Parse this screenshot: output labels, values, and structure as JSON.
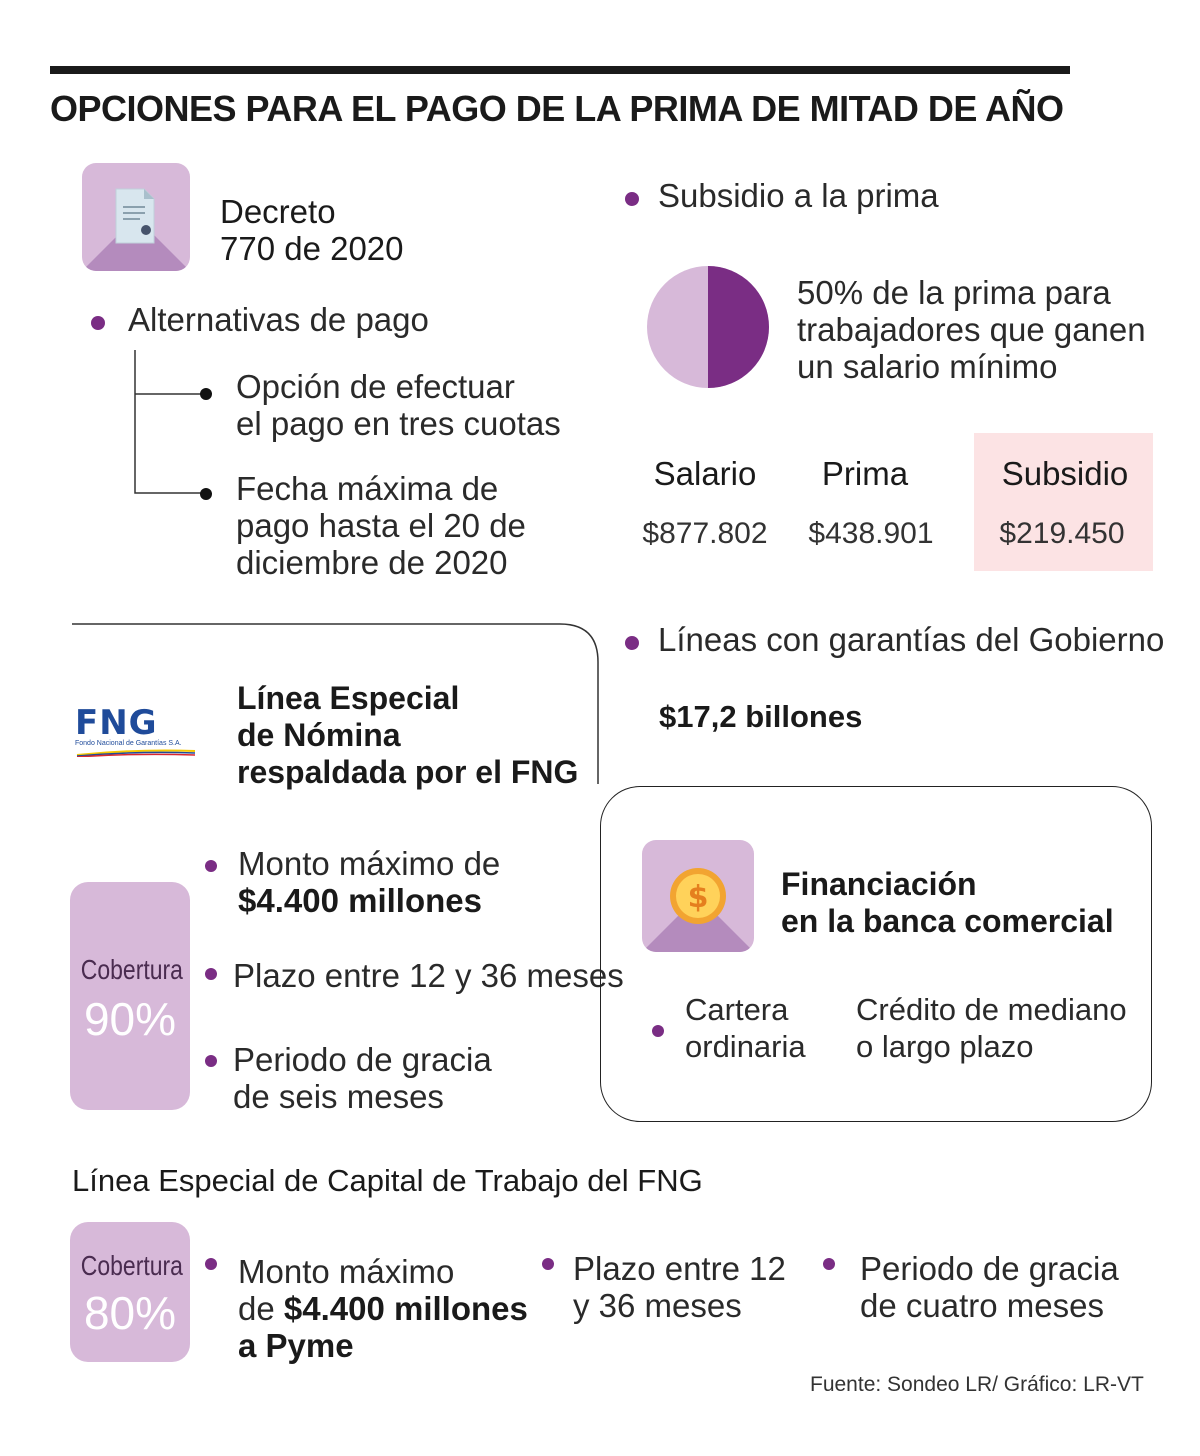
{
  "title": "OPCIONES PARA EL PAGO DE LA PRIMA DE MITAD DE AÑO",
  "decreto": {
    "line1": "Decreto",
    "line2": "770 de 2020"
  },
  "alternativas": {
    "label": "Alternativas de pago",
    "options": [
      {
        "line1": "Opción de efectuar",
        "line2": "el pago en tres cuotas",
        "line3": ""
      },
      {
        "line1": "Fecha máxima de",
        "line2": "pago hasta el 20 de",
        "line3": "diciembre de 2020"
      }
    ]
  },
  "subsidio": {
    "label": "Subsidio a la prima",
    "pie_fraction": 0.5,
    "pie_colors": {
      "light": "#d7b9d9",
      "dark": "#7a2d84"
    },
    "desc1": "50% de la prima para",
    "desc2": "trabajadores que ganen",
    "desc3": "un salario mínimo",
    "table": {
      "headers": [
        "Salario",
        "Prima",
        "Subsidio"
      ],
      "values": [
        "$877.802",
        "$438.901",
        "$219.450"
      ],
      "highlight_color": "#fce3e4"
    }
  },
  "fng_nomina": {
    "logo_text": "FNG",
    "logo_sub": "Fondo Nacional de Garantías S.A.",
    "title1": "Línea Especial",
    "title2": "de Nómina",
    "title3": "respaldada por el FNG",
    "cobertura_label": "Cobertura",
    "cobertura_value": "90%",
    "bullets": [
      {
        "a": "Monto máximo de",
        "b": "$4.400 millones"
      },
      {
        "a": "Plazo entre 12 y 36 meses",
        "b": ""
      },
      {
        "a": "Periodo de gracia",
        "b": "de seis meses"
      }
    ]
  },
  "garantias": {
    "label": "Líneas con garantías del Gobierno",
    "amount": "$17,2 billones"
  },
  "banca": {
    "title1": "Financiación",
    "title2": "en la banca comercial",
    "col1a": "Cartera",
    "col1b": "ordinaria",
    "col2a": "Crédito de mediano",
    "col2b": "o largo plazo",
    "coin_symbol": "$"
  },
  "capital": {
    "title": "Línea Especial de Capital de Trabajo del FNG",
    "cobertura_label": "Cobertura",
    "cobertura_value": "80%",
    "b1a": "Monto máximo",
    "b1b_pre": "de ",
    "b1b_bold": "$4.400 millones",
    "b1c": "a Pyme",
    "b2a": "Plazo entre 12",
    "b2b": "y 36 meses",
    "b3a": "Periodo de gracia",
    "b3b": "de cuatro meses"
  },
  "source": "Fuente: Sondeo LR/ Gráfico: LR-VT",
  "colors": {
    "purple": "#7a2d84",
    "lilac": "#d7b9d9",
    "lilac_dark": "#b48bbd"
  }
}
